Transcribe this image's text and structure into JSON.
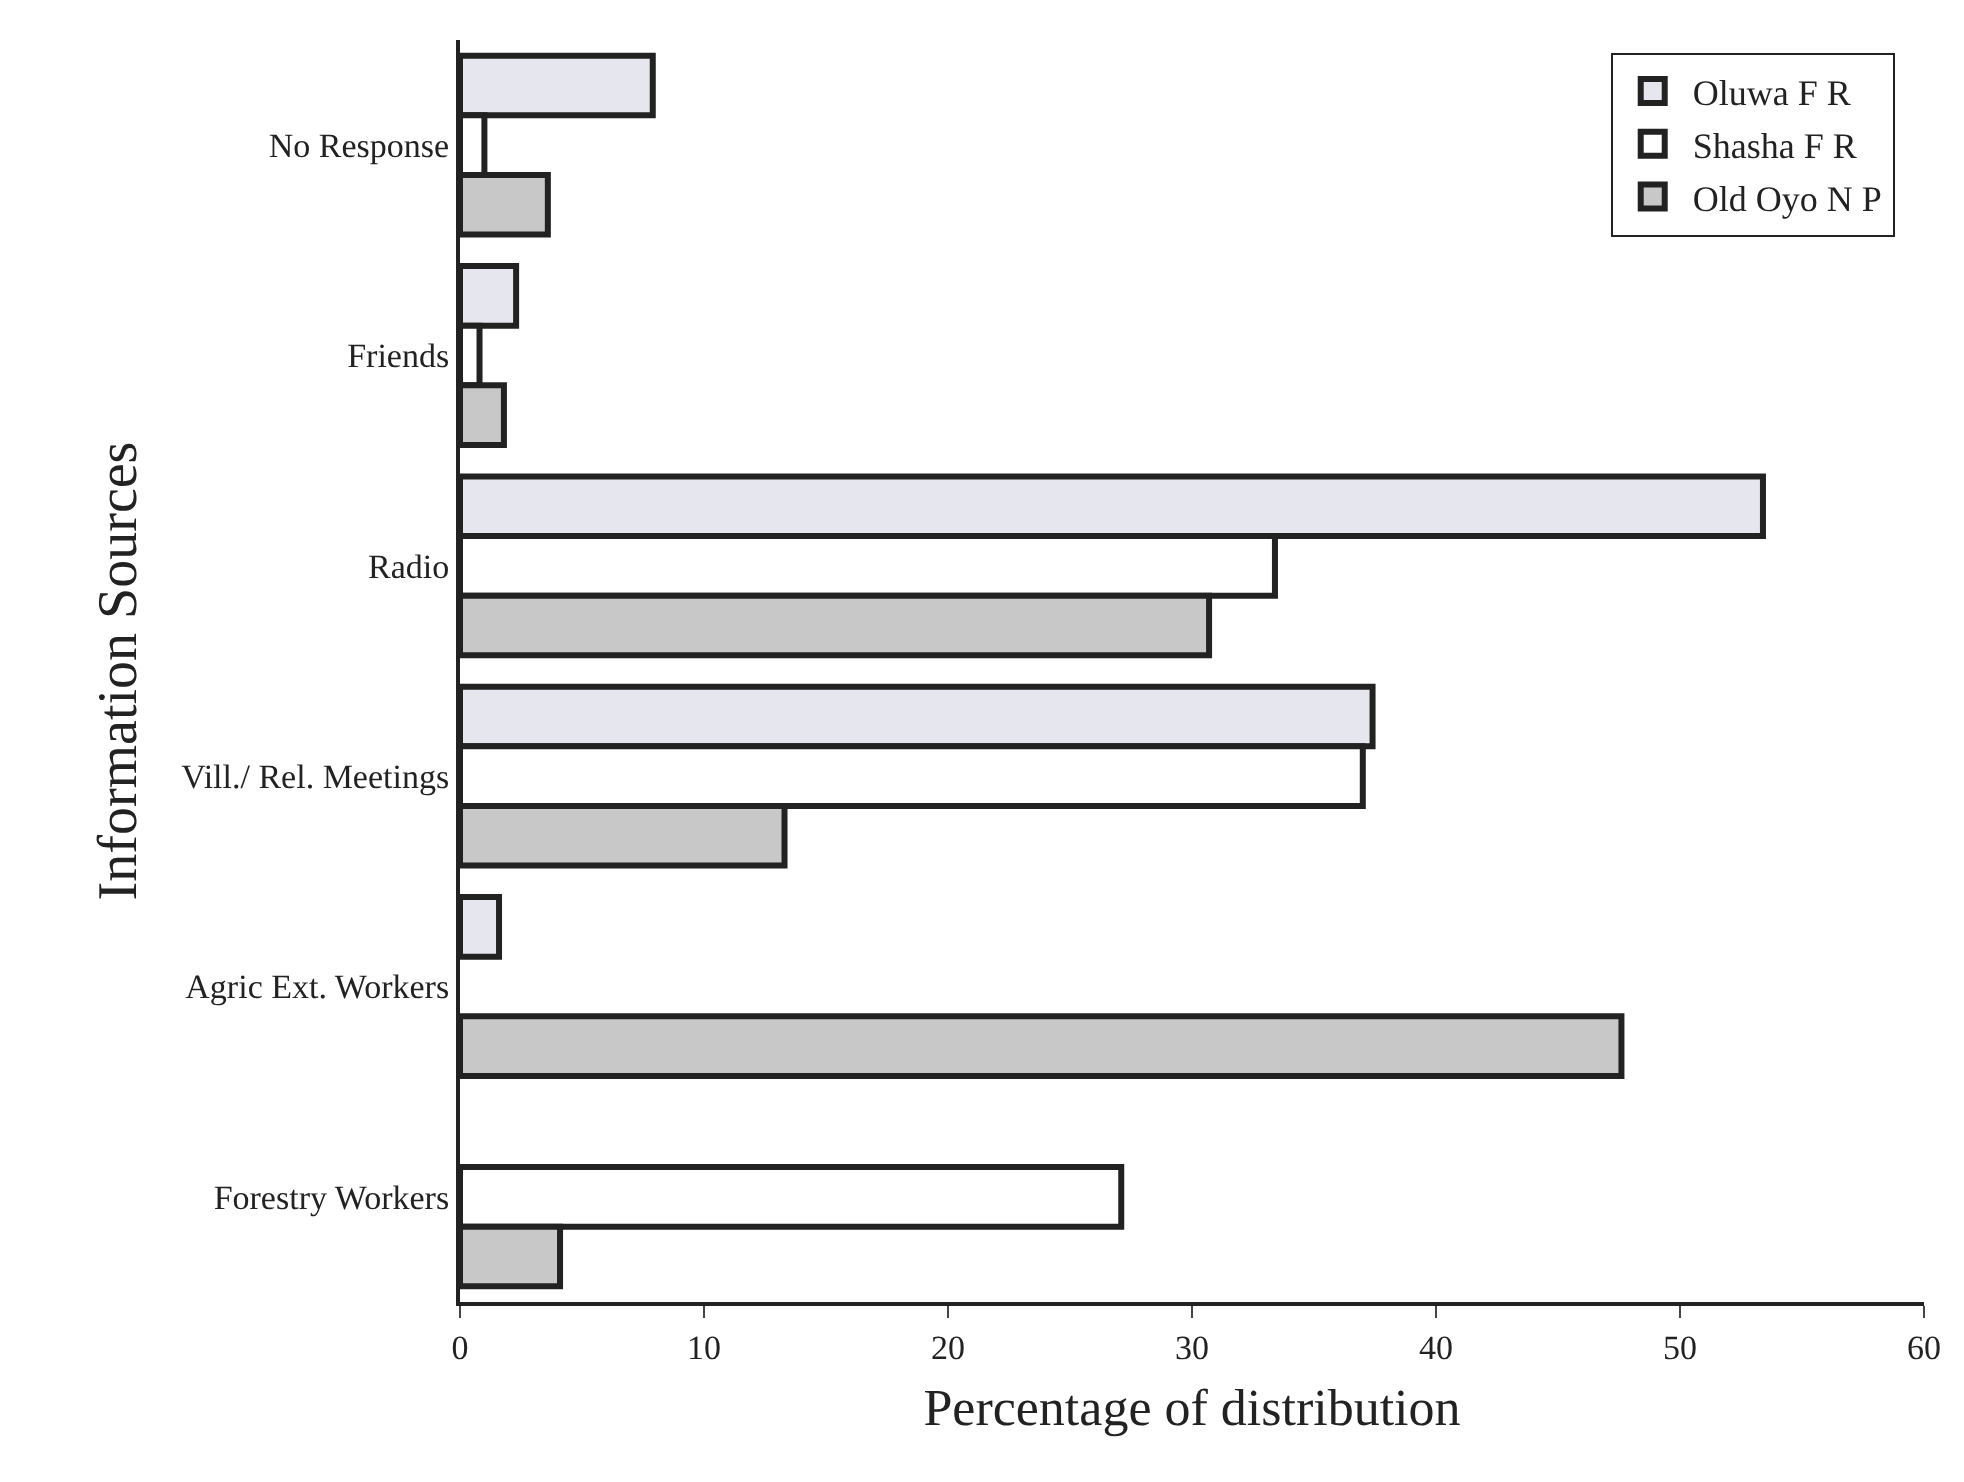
{
  "chart_data": {
    "type": "bar",
    "orientation": "horizontal",
    "xlabel": "Percentage of distribution",
    "ylabel": "Information Sources",
    "categories": [
      "No Response",
      "Friends",
      "Radio",
      "Vill./ Rel. Meetings",
      "Agric Ext. Workers",
      "Forestry Workers"
    ],
    "series": [
      {
        "name": "Oluwa F R",
        "color": "#e6e6ee",
        "values": [
          7.9,
          2.3,
          53.4,
          37.4,
          1.6,
          null
        ]
      },
      {
        "name": "Shasha F R",
        "color": "#ffffff",
        "values": [
          1,
          0.8,
          33.4,
          37,
          null,
          27.1
        ]
      },
      {
        "name": "Old Oyo N P",
        "color": "#c8c8c8",
        "values": [
          3.6,
          1.8,
          30.7,
          13.3,
          47.6,
          4.1
        ]
      }
    ],
    "xlim": [
      0,
      60
    ],
    "xticks": [
      0,
      10,
      20,
      30,
      40,
      50,
      60
    ],
    "grid": false,
    "legend": "top right"
  }
}
